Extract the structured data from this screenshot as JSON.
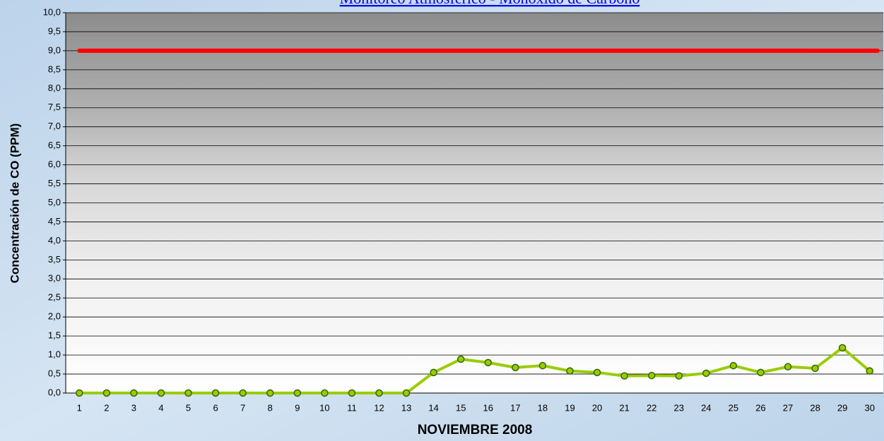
{
  "chart_data": {
    "type": "line",
    "title": "Monitoreo Atmosferico - Monoxido de Carbono",
    "x_label": "NOVIEMBRE 2008",
    "y_label": "Concentración de CO (PPM)",
    "categories": [
      "1",
      "2",
      "3",
      "4",
      "5",
      "6",
      "7",
      "8",
      "9",
      "10",
      "11",
      "12",
      "13",
      "14",
      "15",
      "16",
      "17",
      "18",
      "19",
      "20",
      "21",
      "22",
      "23",
      "24",
      "25",
      "26",
      "27",
      "28",
      "29",
      "30"
    ],
    "series": [
      {
        "color": "#99cc00",
        "values": [
          0,
          0,
          0,
          0,
          0,
          0,
          0,
          0,
          0,
          0,
          0,
          0,
          0,
          0.54,
          0.89,
          0.8,
          0.67,
          0.72,
          0.58,
          0.54,
          0.45,
          0.46,
          0.45,
          0.52,
          0.72,
          0.54,
          0.69,
          0.65,
          1.19,
          0.58
        ]
      }
    ],
    "reference_line": {
      "value": 9,
      "color": "#ff0000"
    },
    "ylim": [
      0,
      10
    ],
    "yticks": [
      {
        "value": 0,
        "label": "0,0"
      },
      {
        "value": 0.5,
        "label": "0,5"
      },
      {
        "value": 1,
        "label": "1,0"
      },
      {
        "value": 1.5,
        "label": "1,5"
      },
      {
        "value": 2,
        "label": "2,0"
      },
      {
        "value": 2.5,
        "label": "2,5"
      },
      {
        "value": 3,
        "label": "3,0"
      },
      {
        "value": 3.5,
        "label": "3,5"
      },
      {
        "value": 4,
        "label": "4,0"
      },
      {
        "value": 4.5,
        "label": "4,5"
      },
      {
        "value": 5,
        "label": "5,0"
      },
      {
        "value": 5.5,
        "label": "5,5"
      },
      {
        "value": 6,
        "label": "6,0"
      },
      {
        "value": 6.5,
        "label": "6,5"
      },
      {
        "value": 7,
        "label": "7,0"
      },
      {
        "value": 7.5,
        "label": "7,5"
      },
      {
        "value": 8,
        "label": "8,0"
      },
      {
        "value": 8.5,
        "label": "8,5"
      },
      {
        "value": 9,
        "label": "9,0"
      },
      {
        "value": 9.5,
        "label": "9,5"
      },
      {
        "value": 10,
        "label": "10,0"
      }
    ],
    "grid": true
  }
}
